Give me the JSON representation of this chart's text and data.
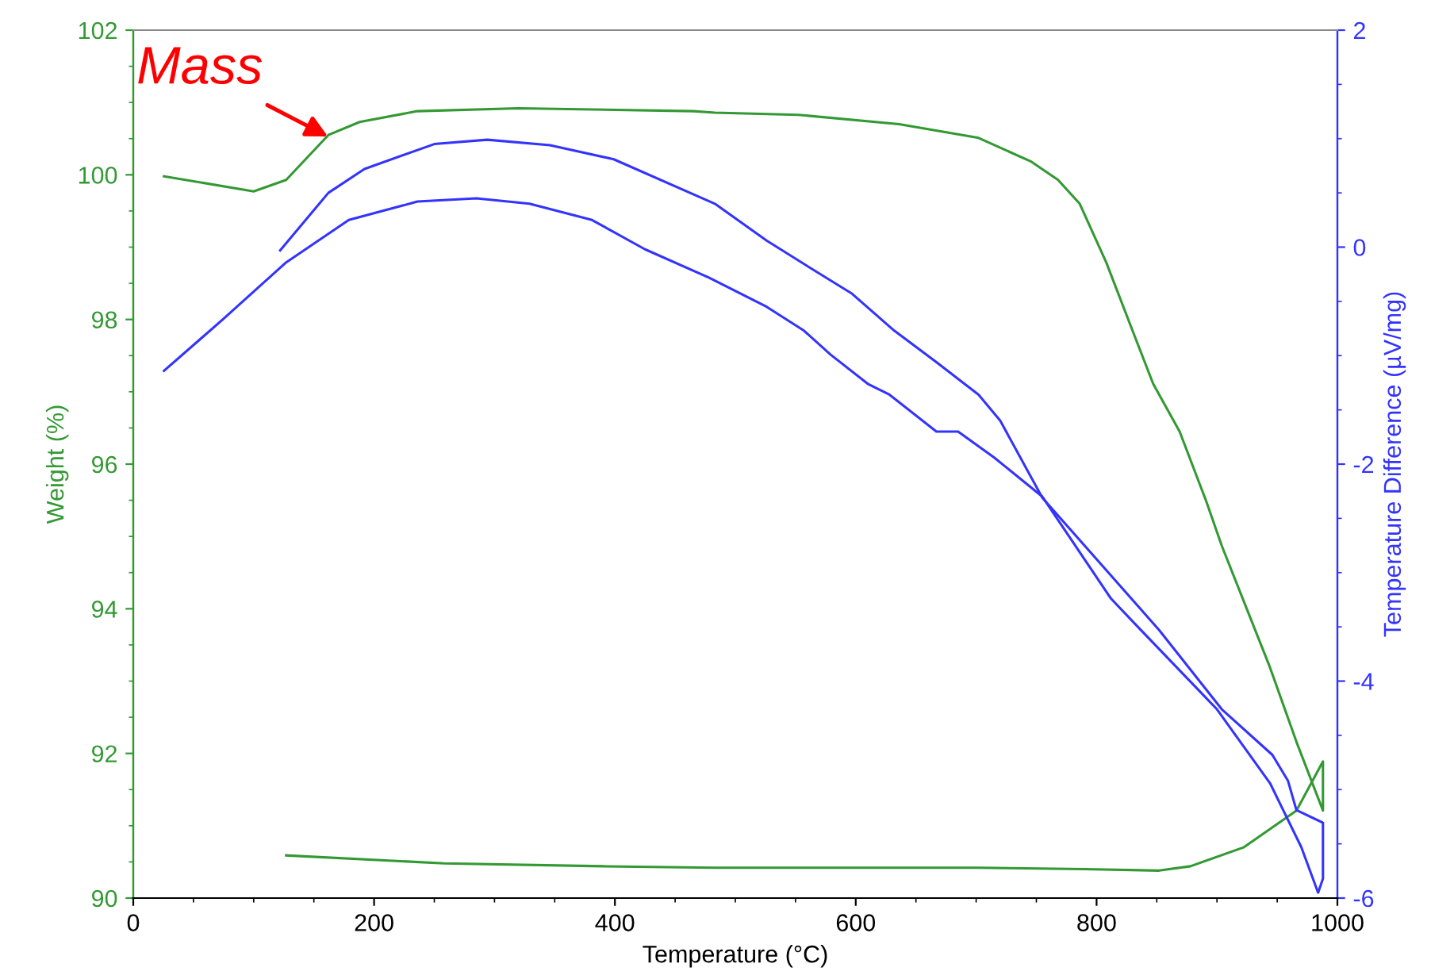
{
  "chart_data": {
    "type": "line",
    "xlabel": "Temperature (°C)",
    "ylabel": "Weight (%)",
    "y2label": "Temperature Difference (µV/mg)",
    "xlim": [
      0,
      1000
    ],
    "xticks": [
      0,
      200,
      400,
      600,
      800,
      1000
    ],
    "ylim": [
      90,
      102
    ],
    "yticks": [
      90,
      92,
      94,
      96,
      98,
      100,
      102
    ],
    "y2lim": [
      -6,
      2
    ],
    "y2ticks": [
      -6,
      -4,
      -2,
      0,
      2
    ],
    "grid": false,
    "legend": false,
    "marker": "none",
    "line_style": "solid",
    "annotations": [
      {
        "text": "Mass",
        "x": 165,
        "y": 100.5
      }
    ],
    "series": [
      {
        "color": "#339933",
        "x": [
          25.5,
          100,
          127,
          162,
          188,
          236,
          320,
          465,
          483,
          552,
          636,
          702,
          746,
          768,
          786,
          808,
          830,
          847,
          869,
          891,
          904,
          944,
          966,
          988,
          988,
          966,
          922,
          878,
          852,
          790,
          702,
          483,
          390,
          258,
          127
        ],
        "values": [
          99.98,
          99.77,
          99.93,
          100.55,
          100.73,
          100.88,
          100.92,
          100.88,
          100.86,
          100.83,
          100.7,
          100.51,
          100.18,
          99.93,
          99.6,
          98.79,
          97.84,
          97.11,
          96.45,
          95.49,
          94.87,
          93.19,
          92.16,
          91.21,
          91.89,
          91.21,
          90.7,
          90.44,
          90.38,
          90.4,
          90.42,
          90.42,
          90.44,
          90.48,
          90.59
        ]
      },
      {
        "color": "#3333ff",
        "axis": "y2",
        "x": [
          25.5,
          74,
          127,
          179,
          236,
          285,
          329,
          381,
          425,
          478,
          526,
          557,
          579,
          610,
          628,
          667,
          685,
          715,
          755,
          812,
          836,
          900,
          944,
          970,
          984,
          988,
          988
        ],
        "values": [
          -1.14,
          -0.67,
          -0.14,
          0.25,
          0.42,
          0.45,
          0.4,
          0.25,
          -0.02,
          -0.28,
          -0.55,
          -0.77,
          -0.99,
          -1.26,
          -1.36,
          -1.7,
          -1.7,
          -1.94,
          -2.3,
          -3.24,
          -3.52,
          -4.26,
          -4.94,
          -5.53,
          -5.95,
          -5.82,
          -5.31
        ]
      },
      {
        "color": "#3333ff",
        "axis": "y2",
        "x": [
          987,
          966,
          959,
          946,
          904,
          852,
          755,
          720,
          702,
          667,
          632,
          597,
          562,
          526,
          483,
          399,
          346,
          294,
          250,
          192,
          162,
          122
        ],
        "values": [
          -5.3,
          -5.19,
          -4.92,
          -4.68,
          -4.26,
          -3.53,
          -2.31,
          -1.6,
          -1.36,
          -1.06,
          -0.77,
          -0.43,
          -0.19,
          0.06,
          0.4,
          0.81,
          0.94,
          0.99,
          0.95,
          0.72,
          0.5,
          -0.03
        ]
      }
    ]
  }
}
